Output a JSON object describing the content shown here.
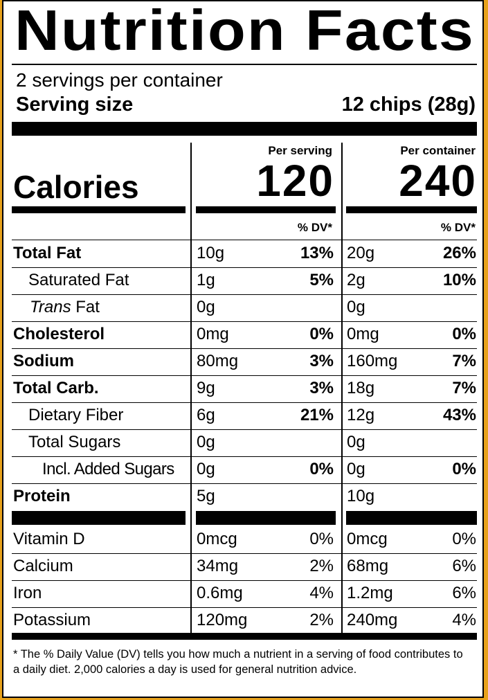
{
  "title": "Nutrition Facts",
  "servings_per_container": "2 servings per container",
  "serving_size_label": "Serving size",
  "serving_size_value": "12 chips (28g)",
  "columns": {
    "per_serving": "Per serving",
    "per_container": "Per container"
  },
  "calories": {
    "label": "Calories",
    "per_serving": "120",
    "per_container": "240"
  },
  "dv_header": "% DV*",
  "nutrients": [
    {
      "name": "Total Fat",
      "serving_amount": "10g",
      "serving_dv": "13%",
      "container_amount": "20g",
      "container_dv": "26%"
    },
    {
      "name": "Saturated Fat",
      "serving_amount": "1g",
      "serving_dv": "5%",
      "container_amount": "2g",
      "container_dv": "10%"
    },
    {
      "name_italic": "Trans",
      "name": " Fat",
      "serving_amount": "0g",
      "serving_dv": "",
      "container_amount": "0g",
      "container_dv": ""
    },
    {
      "name": "Cholesterol",
      "serving_amount": "0mg",
      "serving_dv": "0%",
      "container_amount": "0mg",
      "container_dv": "0%"
    },
    {
      "name": "Sodium",
      "serving_amount": "80mg",
      "serving_dv": "3%",
      "container_amount": "160mg",
      "container_dv": "7%"
    },
    {
      "name": "Total Carb.",
      "serving_amount": "9g",
      "serving_dv": "3%",
      "container_amount": "18g",
      "container_dv": "7%"
    },
    {
      "name": "Dietary Fiber",
      "serving_amount": "6g",
      "serving_dv": "21%",
      "container_amount": "12g",
      "container_dv": "43%"
    },
    {
      "name": "Total Sugars",
      "serving_amount": "0g",
      "serving_dv": "",
      "container_amount": "0g",
      "container_dv": ""
    },
    {
      "name": "Incl. Added Sugars",
      "serving_amount": "0g",
      "serving_dv": "0%",
      "container_amount": "0g",
      "container_dv": "0%"
    },
    {
      "name": "Protein",
      "serving_amount": "5g",
      "serving_dv": "",
      "container_amount": "10g",
      "container_dv": ""
    }
  ],
  "vitamins": [
    {
      "name": "Vitamin D",
      "serving_amount": "0mcg",
      "serving_dv": "0%",
      "container_amount": "0mcg",
      "container_dv": "0%"
    },
    {
      "name": "Calcium",
      "serving_amount": "34mg",
      "serving_dv": "2%",
      "container_amount": "68mg",
      "container_dv": "6%"
    },
    {
      "name": "Iron",
      "serving_amount": "0.6mg",
      "serving_dv": "4%",
      "container_amount": "1.2mg",
      "container_dv": "6%"
    },
    {
      "name": "Potassium",
      "serving_amount": "120mg",
      "serving_dv": "2%",
      "container_amount": "240mg",
      "container_dv": "4%"
    }
  ],
  "footnote": "* The % Daily Value (DV) tells you how much a nutrient in a serving of food contributes to a daily diet. 2,000 calories a day is used for general nutrition advice.",
  "colors": {
    "background": "#e8a21c",
    "ink": "#000000",
    "panel": "#ffffff"
  }
}
